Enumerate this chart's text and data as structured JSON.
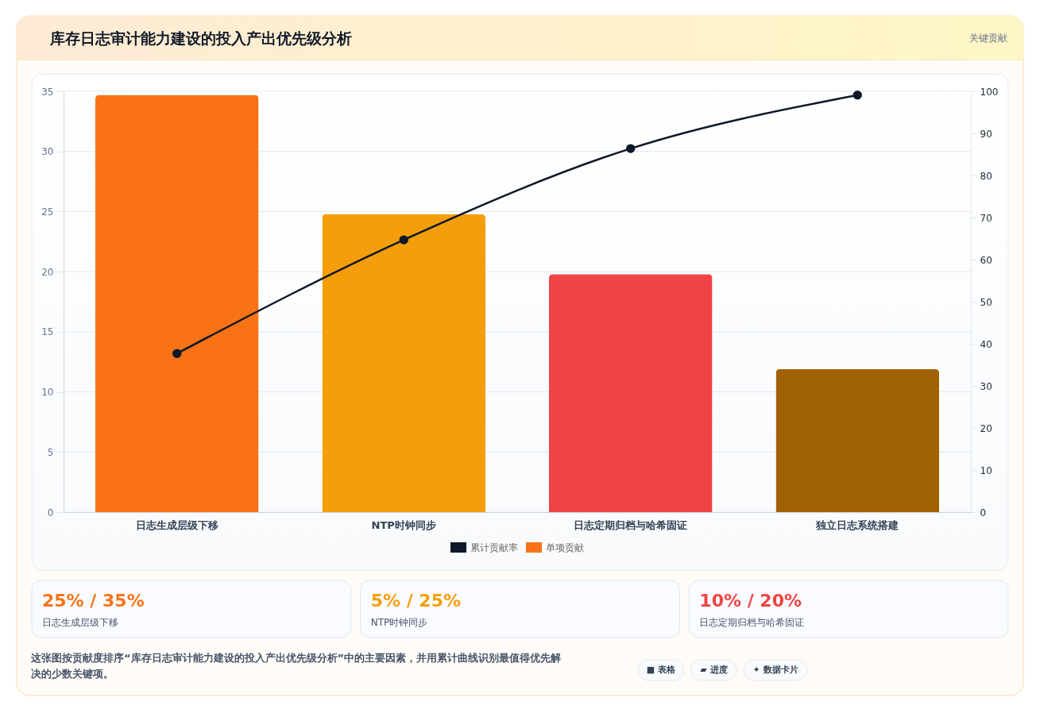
{
  "chart_data": {
    "type": "bar",
    "title": "库存日志审计能力建设的投入产出优先级分析",
    "categories": [
      "日志生成层级下移",
      "NTP时钟同步",
      "日志定期归档与哈希固证",
      "独立日志系统搭建"
    ],
    "series": [
      {
        "name": "累计贡献率",
        "type": "line",
        "axis": "y2",
        "color": "#0f172a",
        "values": [
          37.7,
          64.7,
          86.4,
          99.1
        ]
      },
      {
        "name": "单项贡献",
        "colors": [
          "#f97316",
          "#f59e0b",
          "#ef4444",
          "#a16207"
        ],
        "values": [
          34.7,
          24.8,
          19.8,
          11.9
        ]
      }
    ],
    "ylim": [
      0,
      35
    ],
    "yticks": [
      0,
      5,
      10,
      15,
      20,
      25,
      30,
      35
    ],
    "y2lim": [
      0,
      100
    ],
    "y2ticks": [
      0,
      10,
      20,
      30,
      40,
      50,
      60,
      70,
      80,
      90,
      100
    ],
    "grid": "y",
    "legend": "bottom",
    "marker": "circle",
    "annotations": [
      "关键贡献",
      "25% / 35%",
      "日志生成层级下移",
      "5% / 25%",
      "NTP时钟同步",
      "10% / 20%",
      "日志定期归档与哈希固证",
      "这张图按贡献度排序“库存日志审计能力建设的投入产出优先级分析”中的主要因素，并用累计曲线识别最值得优先解决的少数关键项。",
      "■ 表格",
      "▰ 进度",
      "✦ 数据卡片"
    ]
  }
}
